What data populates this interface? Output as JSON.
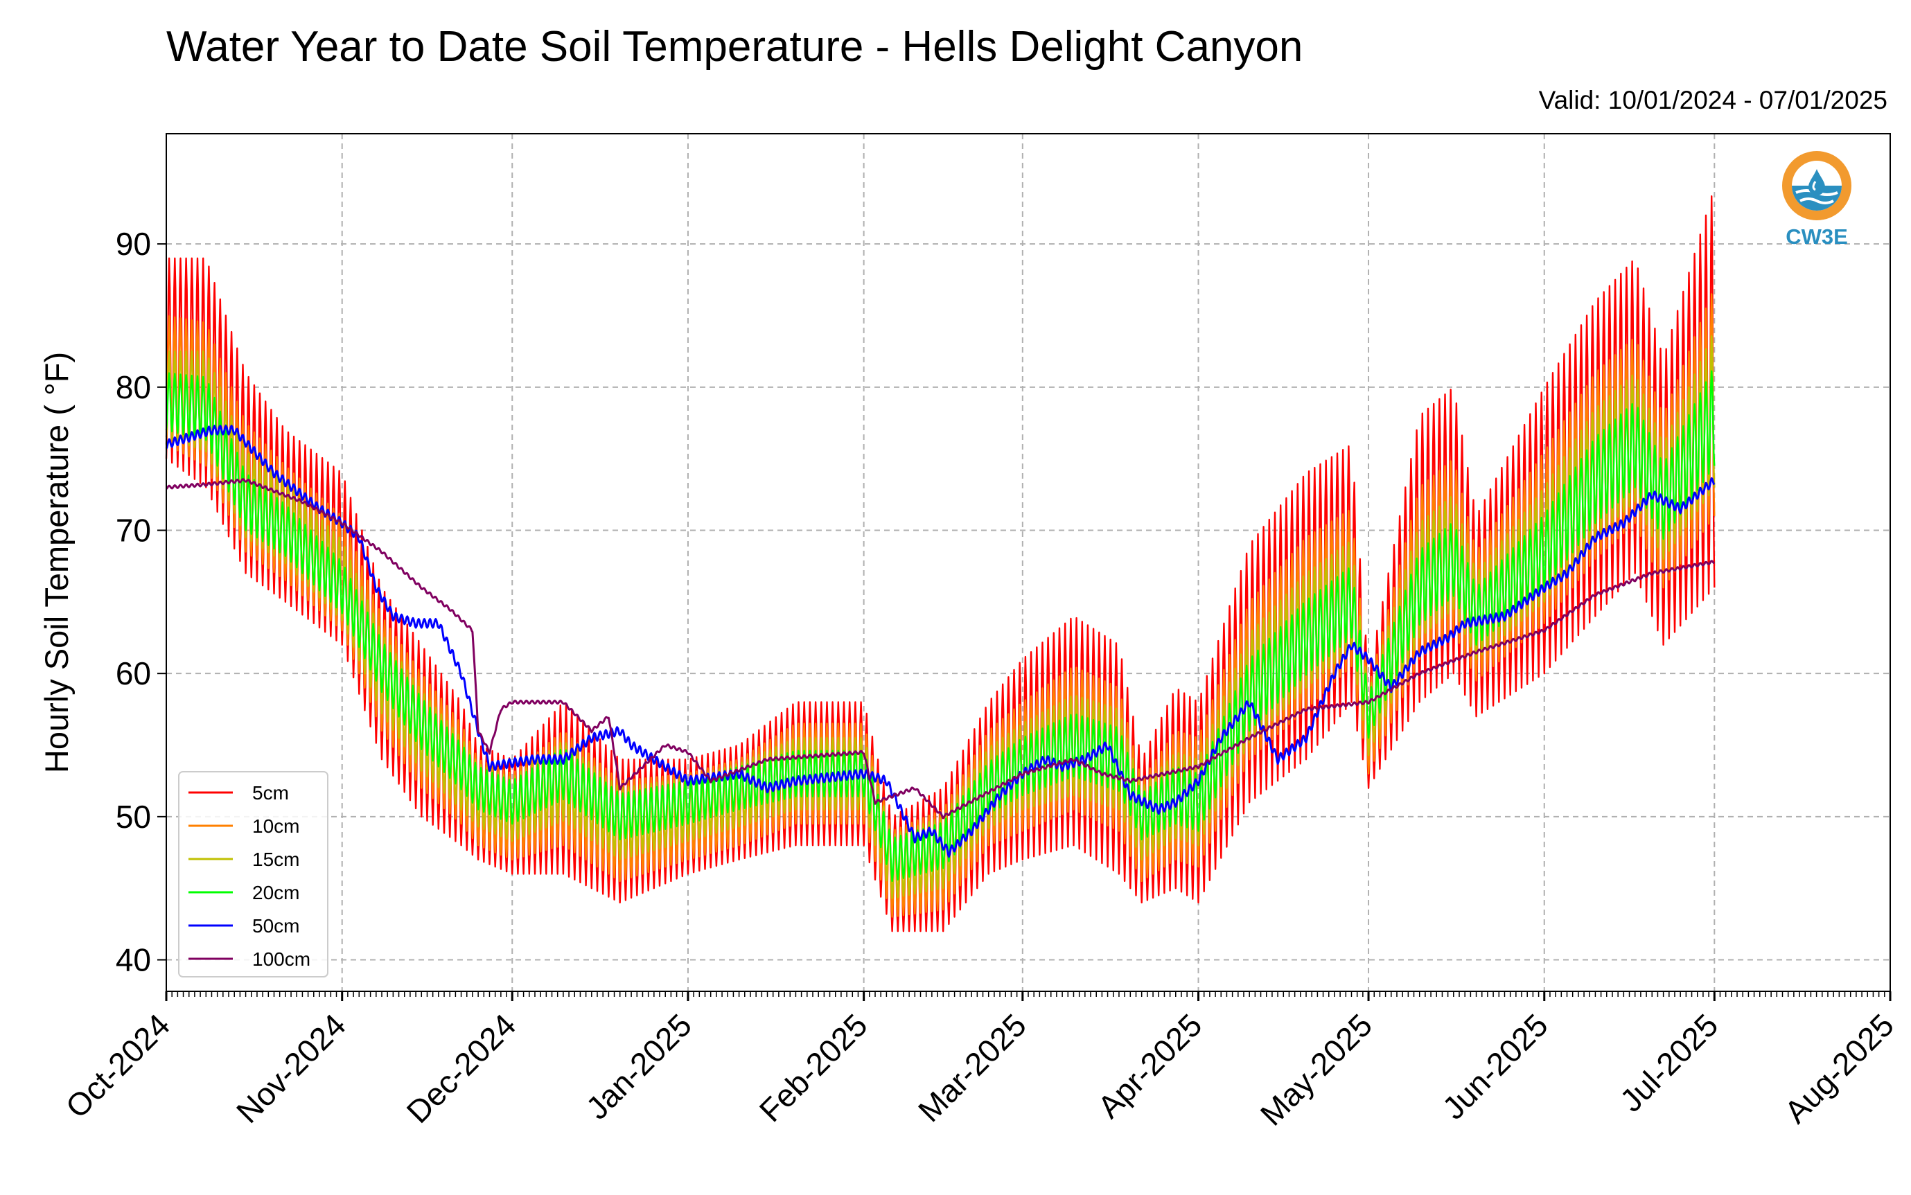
{
  "chart_data": {
    "type": "line",
    "title": "Water Year to Date Soil Temperature - Hells Delight Canyon",
    "subtitle": "Valid: 10/01/2024 - 07/01/2025",
    "ylabel": "Hourly Soil Temperature ( °F)",
    "xlabel": "",
    "xlim": [
      "2024-10-01",
      "2025-08-01"
    ],
    "ylim": [
      37.8,
      97.7
    ],
    "grid": true,
    "legend_position": "lower-left",
    "x_ticks": [
      {
        "date": "2024-10-01",
        "label": "Oct-2024"
      },
      {
        "date": "2024-11-01",
        "label": "Nov-2024"
      },
      {
        "date": "2024-12-01",
        "label": "Dec-2024"
      },
      {
        "date": "2025-01-01",
        "label": "Jan-2025"
      },
      {
        "date": "2025-02-01",
        "label": "Feb-2025"
      },
      {
        "date": "2025-03-01",
        "label": "Mar-2025"
      },
      {
        "date": "2025-04-01",
        "label": "Apr-2025"
      },
      {
        "date": "2025-05-01",
        "label": "May-2025"
      },
      {
        "date": "2025-06-01",
        "label": "Jun-2025"
      },
      {
        "date": "2025-07-01",
        "label": "Jul-2025"
      },
      {
        "date": "2025-08-01",
        "label": "Aug-2025"
      }
    ],
    "y_ticks": [
      40,
      50,
      60,
      70,
      80,
      90
    ],
    "series": [
      {
        "name": "5cm",
        "color": "#ff0000",
        "x": [
          "2024-10-01",
          "2024-10-08",
          "2024-10-15",
          "2024-10-22",
          "2024-11-01",
          "2024-11-08",
          "2024-11-15",
          "2024-11-22",
          "2024-11-25",
          "2024-12-01",
          "2024-12-10",
          "2024-12-20",
          "2025-01-01",
          "2025-01-10",
          "2025-01-20",
          "2025-02-01",
          "2025-02-06",
          "2025-02-15",
          "2025-02-23",
          "2025-03-01",
          "2025-03-10",
          "2025-03-18",
          "2025-03-22",
          "2025-03-28",
          "2025-04-01",
          "2025-04-10",
          "2025-04-20",
          "2025-04-28",
          "2025-05-01",
          "2025-05-10",
          "2025-05-16",
          "2025-05-20",
          "2025-06-01",
          "2025-06-10",
          "2025-06-17",
          "2025-06-22",
          "2025-07-01"
        ],
        "y": [
          82.0,
          81.0,
          74.0,
          71.0,
          68.0,
          60.0,
          56.0,
          53.0,
          51.0,
          50.0,
          52.0,
          49.0,
          50.0,
          51.0,
          53.0,
          53.0,
          46.0,
          47.0,
          52.0,
          54.0,
          56.0,
          54.0,
          49.0,
          52.0,
          51.0,
          60.0,
          64.0,
          67.0,
          56.0,
          68.0,
          70.0,
          64.0,
          70.0,
          75.0,
          78.0,
          72.0,
          80.0
        ],
        "amplitude": [
          7.0,
          8.0,
          7.0,
          6.0,
          6.0,
          6.0,
          6.0,
          5.0,
          4.0,
          4.0,
          6.0,
          5.0,
          4.0,
          4.0,
          5.0,
          5.0,
          4.0,
          5.0,
          6.0,
          7.0,
          8.0,
          8.0,
          5.0,
          7.0,
          7.0,
          9.0,
          10.0,
          9.0,
          4.0,
          10.0,
          10.0,
          7.0,
          10.0,
          11.0,
          11.0,
          10.0,
          14.0
        ]
      },
      {
        "name": "10cm",
        "color": "#ff8000",
        "x": [
          "2024-10-01",
          "2024-10-08",
          "2024-10-15",
          "2024-10-22",
          "2024-11-01",
          "2024-11-08",
          "2024-11-15",
          "2024-11-22",
          "2024-11-25",
          "2024-12-01",
          "2024-12-10",
          "2024-12-20",
          "2025-01-01",
          "2025-01-10",
          "2025-01-20",
          "2025-02-01",
          "2025-02-06",
          "2025-02-15",
          "2025-02-23",
          "2025-03-01",
          "2025-03-10",
          "2025-03-18",
          "2025-03-22",
          "2025-03-28",
          "2025-04-01",
          "2025-04-10",
          "2025-04-20",
          "2025-04-28",
          "2025-05-01",
          "2025-05-10",
          "2025-05-16",
          "2025-05-20",
          "2025-06-01",
          "2025-06-10",
          "2025-06-17",
          "2025-06-22",
          "2025-07-01"
        ],
        "y": [
          80.5,
          79.5,
          73.0,
          70.5,
          67.0,
          60.0,
          56.0,
          53.0,
          51.0,
          50.0,
          52.0,
          49.0,
          50.0,
          51.0,
          53.0,
          53.0,
          46.0,
          47.0,
          52.0,
          53.5,
          55.5,
          54.0,
          49.0,
          51.5,
          51.0,
          59.5,
          63.5,
          66.0,
          56.0,
          67.0,
          69.0,
          64.0,
          69.5,
          74.5,
          77.0,
          72.0,
          79.0
        ],
        "amplitude": [
          4.5,
          5.0,
          4.5,
          4.0,
          4.0,
          4.0,
          4.0,
          3.5,
          3.0,
          3.0,
          4.0,
          3.5,
          3.0,
          3.0,
          3.5,
          3.5,
          3.0,
          3.5,
          4.0,
          4.5,
          5.0,
          5.0,
          3.5,
          4.5,
          4.5,
          5.5,
          6.0,
          5.5,
          3.0,
          6.0,
          6.0,
          4.5,
          6.0,
          6.5,
          6.5,
          6.0,
          8.0
        ]
      },
      {
        "name": "15cm",
        "color": "#c0c000",
        "x": [
          "2024-10-01",
          "2024-10-08",
          "2024-10-15",
          "2024-10-22",
          "2024-11-01",
          "2024-11-08",
          "2024-11-15",
          "2024-11-22",
          "2024-11-25",
          "2024-12-01",
          "2024-12-10",
          "2024-12-20",
          "2025-01-01",
          "2025-01-10",
          "2025-01-20",
          "2025-02-01",
          "2025-02-06",
          "2025-02-15",
          "2025-02-23",
          "2025-03-01",
          "2025-03-10",
          "2025-03-18",
          "2025-03-22",
          "2025-03-28",
          "2025-04-01",
          "2025-04-10",
          "2025-04-20",
          "2025-04-28",
          "2025-05-01",
          "2025-05-10",
          "2025-05-16",
          "2025-05-20",
          "2025-06-01",
          "2025-06-10",
          "2025-06-17",
          "2025-06-22",
          "2025-07-01"
        ],
        "y": [
          79.5,
          79.0,
          72.5,
          70.5,
          66.5,
          60.0,
          56.0,
          53.0,
          51.5,
          50.5,
          52.5,
          49.5,
          50.5,
          51.5,
          53.0,
          53.0,
          46.5,
          47.5,
          52.0,
          53.5,
          55.0,
          54.0,
          49.5,
          51.5,
          51.0,
          59.0,
          63.0,
          65.5,
          56.5,
          66.5,
          68.5,
          64.0,
          69.0,
          74.0,
          76.5,
          72.0,
          78.5
        ],
        "amplitude": [
          3.0,
          3.5,
          3.0,
          2.8,
          2.8,
          2.8,
          2.8,
          2.5,
          2.2,
          2.2,
          2.8,
          2.5,
          2.2,
          2.2,
          2.5,
          2.5,
          2.2,
          2.5,
          2.8,
          3.0,
          3.5,
          3.5,
          2.5,
          3.0,
          3.0,
          3.8,
          4.0,
          3.8,
          2.2,
          4.0,
          4.0,
          3.0,
          4.0,
          4.5,
          4.5,
          4.0,
          5.5
        ]
      },
      {
        "name": "20cm",
        "color": "#00ff00",
        "x": [
          "2024-10-01",
          "2024-10-08",
          "2024-10-15",
          "2024-10-22",
          "2024-11-01",
          "2024-11-08",
          "2024-11-15",
          "2024-11-22",
          "2024-11-25",
          "2024-12-01",
          "2024-12-10",
          "2024-12-20",
          "2025-01-01",
          "2025-01-10",
          "2025-01-20",
          "2025-02-01",
          "2025-02-06",
          "2025-02-15",
          "2025-02-23",
          "2025-03-01",
          "2025-03-10",
          "2025-03-18",
          "2025-03-22",
          "2025-03-28",
          "2025-04-01",
          "2025-04-10",
          "2025-04-20",
          "2025-04-28",
          "2025-05-01",
          "2025-05-10",
          "2025-05-16",
          "2025-05-20",
          "2025-06-01",
          "2025-06-10",
          "2025-06-17",
          "2025-06-22",
          "2025-07-01"
        ],
        "y": [
          79.0,
          78.5,
          72.0,
          70.0,
          66.0,
          60.5,
          56.5,
          53.5,
          52.0,
          51.0,
          53.0,
          50.0,
          51.0,
          52.0,
          53.0,
          53.0,
          47.0,
          48.0,
          52.0,
          53.5,
          55.0,
          54.0,
          50.0,
          51.5,
          51.0,
          58.5,
          62.5,
          65.0,
          57.0,
          66.0,
          68.0,
          64.0,
          68.5,
          73.5,
          76.0,
          72.0,
          78.0
        ],
        "amplitude": [
          2.0,
          2.2,
          2.0,
          1.8,
          1.8,
          1.8,
          1.8,
          1.6,
          1.5,
          1.5,
          1.8,
          1.6,
          1.5,
          1.5,
          1.6,
          1.6,
          1.5,
          1.6,
          1.8,
          2.0,
          2.2,
          2.2,
          1.6,
          2.0,
          2.0,
          2.5,
          2.6,
          2.5,
          1.5,
          2.6,
          2.6,
          2.0,
          2.6,
          3.0,
          3.0,
          2.6,
          3.5
        ]
      },
      {
        "name": "50cm",
        "color": "#0000ff",
        "x": [
          "2024-10-01",
          "2024-10-05",
          "2024-10-09",
          "2024-10-13",
          "2024-10-20",
          "2024-10-28",
          "2024-11-01",
          "2024-11-04",
          "2024-11-07",
          "2024-11-10",
          "2024-11-14",
          "2024-11-18",
          "2024-11-22",
          "2024-11-25",
          "2024-11-27",
          "2024-12-05",
          "2024-12-10",
          "2024-12-15",
          "2024-12-20",
          "2024-12-22",
          "2025-01-01",
          "2025-01-10",
          "2025-01-15",
          "2025-01-20",
          "2025-02-01",
          "2025-02-05",
          "2025-02-10",
          "2025-02-13",
          "2025-02-16",
          "2025-02-20",
          "2025-02-25",
          "2025-03-01",
          "2025-03-05",
          "2025-03-08",
          "2025-03-12",
          "2025-03-16",
          "2025-03-20",
          "2025-03-25",
          "2025-03-28",
          "2025-04-01",
          "2025-04-05",
          "2025-04-10",
          "2025-04-15",
          "2025-04-20",
          "2025-04-25",
          "2025-04-28",
          "2025-05-01",
          "2025-05-05",
          "2025-05-10",
          "2025-05-15",
          "2025-05-18",
          "2025-05-25",
          "2025-06-01",
          "2025-06-05",
          "2025-06-10",
          "2025-06-15",
          "2025-06-20",
          "2025-06-25",
          "2025-07-01"
        ],
        "y": [
          76.0,
          76.5,
          77.0,
          77.0,
          74.0,
          71.5,
          70.5,
          69.5,
          66.0,
          64.0,
          63.5,
          63.5,
          60.0,
          56.0,
          53.5,
          54.0,
          54.0,
          55.5,
          56.0,
          55.0,
          52.5,
          53.0,
          52.0,
          52.5,
          53.0,
          52.5,
          48.5,
          49.0,
          47.5,
          49.0,
          51.5,
          53.0,
          54.0,
          53.5,
          54.0,
          55.0,
          51.5,
          50.5,
          51.0,
          52.5,
          55.5,
          58.0,
          54.0,
          55.5,
          60.0,
          62.0,
          61.0,
          59.0,
          61.5,
          62.5,
          63.5,
          64.0,
          66.0,
          67.0,
          69.5,
          70.5,
          72.5,
          71.5,
          73.5
        ],
        "amplitude": [
          0.3,
          0.3,
          0.3,
          0.3,
          0.3,
          0.3,
          0.3,
          0.3,
          0.3,
          0.3,
          0.3,
          0.3,
          0.3,
          0.3,
          0.3,
          0.3,
          0.3,
          0.3,
          0.3,
          0.3,
          0.3,
          0.3,
          0.3,
          0.3,
          0.3,
          0.3,
          0.3,
          0.3,
          0.3,
          0.3,
          0.3,
          0.3,
          0.3,
          0.3,
          0.3,
          0.3,
          0.3,
          0.3,
          0.3,
          0.3,
          0.3,
          0.3,
          0.3,
          0.3,
          0.3,
          0.3,
          0.3,
          0.3,
          0.3,
          0.3,
          0.3,
          0.3,
          0.3,
          0.3,
          0.3,
          0.3,
          0.3,
          0.3,
          0.3
        ]
      },
      {
        "name": "100cm",
        "color": "#800060",
        "x": [
          "2024-10-01",
          "2024-10-08",
          "2024-10-15",
          "2024-10-25",
          "2024-11-01",
          "2024-11-08",
          "2024-11-15",
          "2024-11-20",
          "2024-11-24",
          "2024-11-25",
          "2024-11-27",
          "2024-11-29",
          "2024-12-01",
          "2024-12-05",
          "2024-12-10",
          "2024-12-15",
          "2024-12-18",
          "2024-12-20",
          "2024-12-28",
          "2025-01-01",
          "2025-01-05",
          "2025-01-15",
          "2025-02-01",
          "2025-02-03",
          "2025-02-10",
          "2025-02-15",
          "2025-02-22",
          "2025-03-01",
          "2025-03-10",
          "2025-03-15",
          "2025-03-20",
          "2025-04-01",
          "2025-04-10",
          "2025-04-20",
          "2025-05-01",
          "2025-05-10",
          "2025-05-20",
          "2025-06-01",
          "2025-06-10",
          "2025-06-20",
          "2025-07-01"
        ],
        "y": [
          73.0,
          73.2,
          73.5,
          72.0,
          70.5,
          68.5,
          66.0,
          64.5,
          63.0,
          56.0,
          54.5,
          57.5,
          58.0,
          58.0,
          58.0,
          56.0,
          57.0,
          52.0,
          55.0,
          54.5,
          52.5,
          54.0,
          54.5,
          51.0,
          52.0,
          50.0,
          51.5,
          53.0,
          54.0,
          53.0,
          52.5,
          53.5,
          55.5,
          57.5,
          58.0,
          60.0,
          61.5,
          63.0,
          65.5,
          67.0,
          67.8
        ],
        "amplitude": [
          0.1,
          0.1,
          0.1,
          0.1,
          0.1,
          0.1,
          0.1,
          0.1,
          0.1,
          0.1,
          0.1,
          0.1,
          0.1,
          0.1,
          0.1,
          0.1,
          0.1,
          0.1,
          0.1,
          0.1,
          0.1,
          0.1,
          0.1,
          0.1,
          0.1,
          0.1,
          0.1,
          0.1,
          0.1,
          0.1,
          0.1,
          0.1,
          0.1,
          0.1,
          0.1,
          0.1,
          0.1,
          0.1,
          0.1,
          0.1,
          0.1
        ]
      }
    ]
  },
  "logo": {
    "text": "CW3E",
    "icon": "water-drop-logo-icon"
  },
  "colors": {
    "grid": "#b0b0b0",
    "logo_orange": "#f29a2e",
    "logo_blue": "#2a8fc0"
  }
}
